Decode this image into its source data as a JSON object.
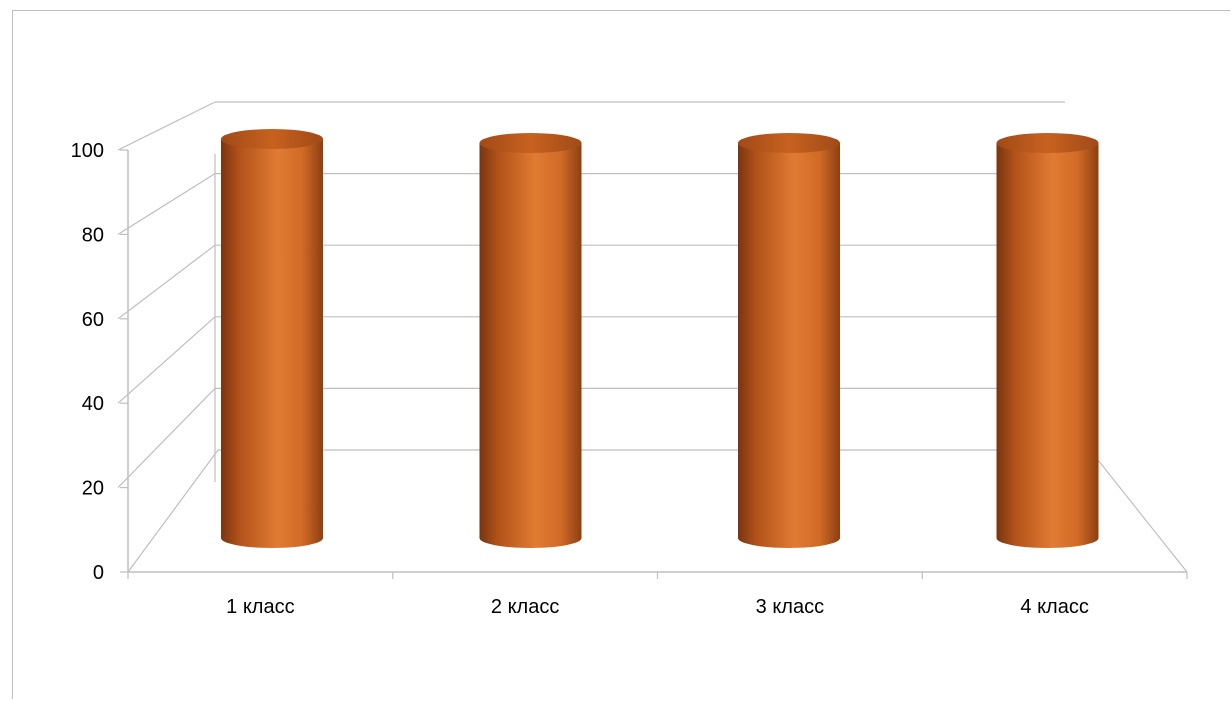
{
  "chart_data": {
    "type": "bar",
    "style": "3d-cylinder",
    "categories": [
      "1 класс",
      "2 класс",
      "3 класс",
      "4 класс"
    ],
    "series": [
      {
        "values": [
          100,
          100,
          100,
          100
        ]
      }
    ],
    "yticks": [
      "0",
      "20",
      "40",
      "60",
      "80",
      "100"
    ],
    "ylim": [
      0,
      100
    ],
    "grid": true,
    "legend": "none",
    "bar_color": "#D2691E",
    "title": "",
    "xlabel": "",
    "ylabel": ""
  }
}
